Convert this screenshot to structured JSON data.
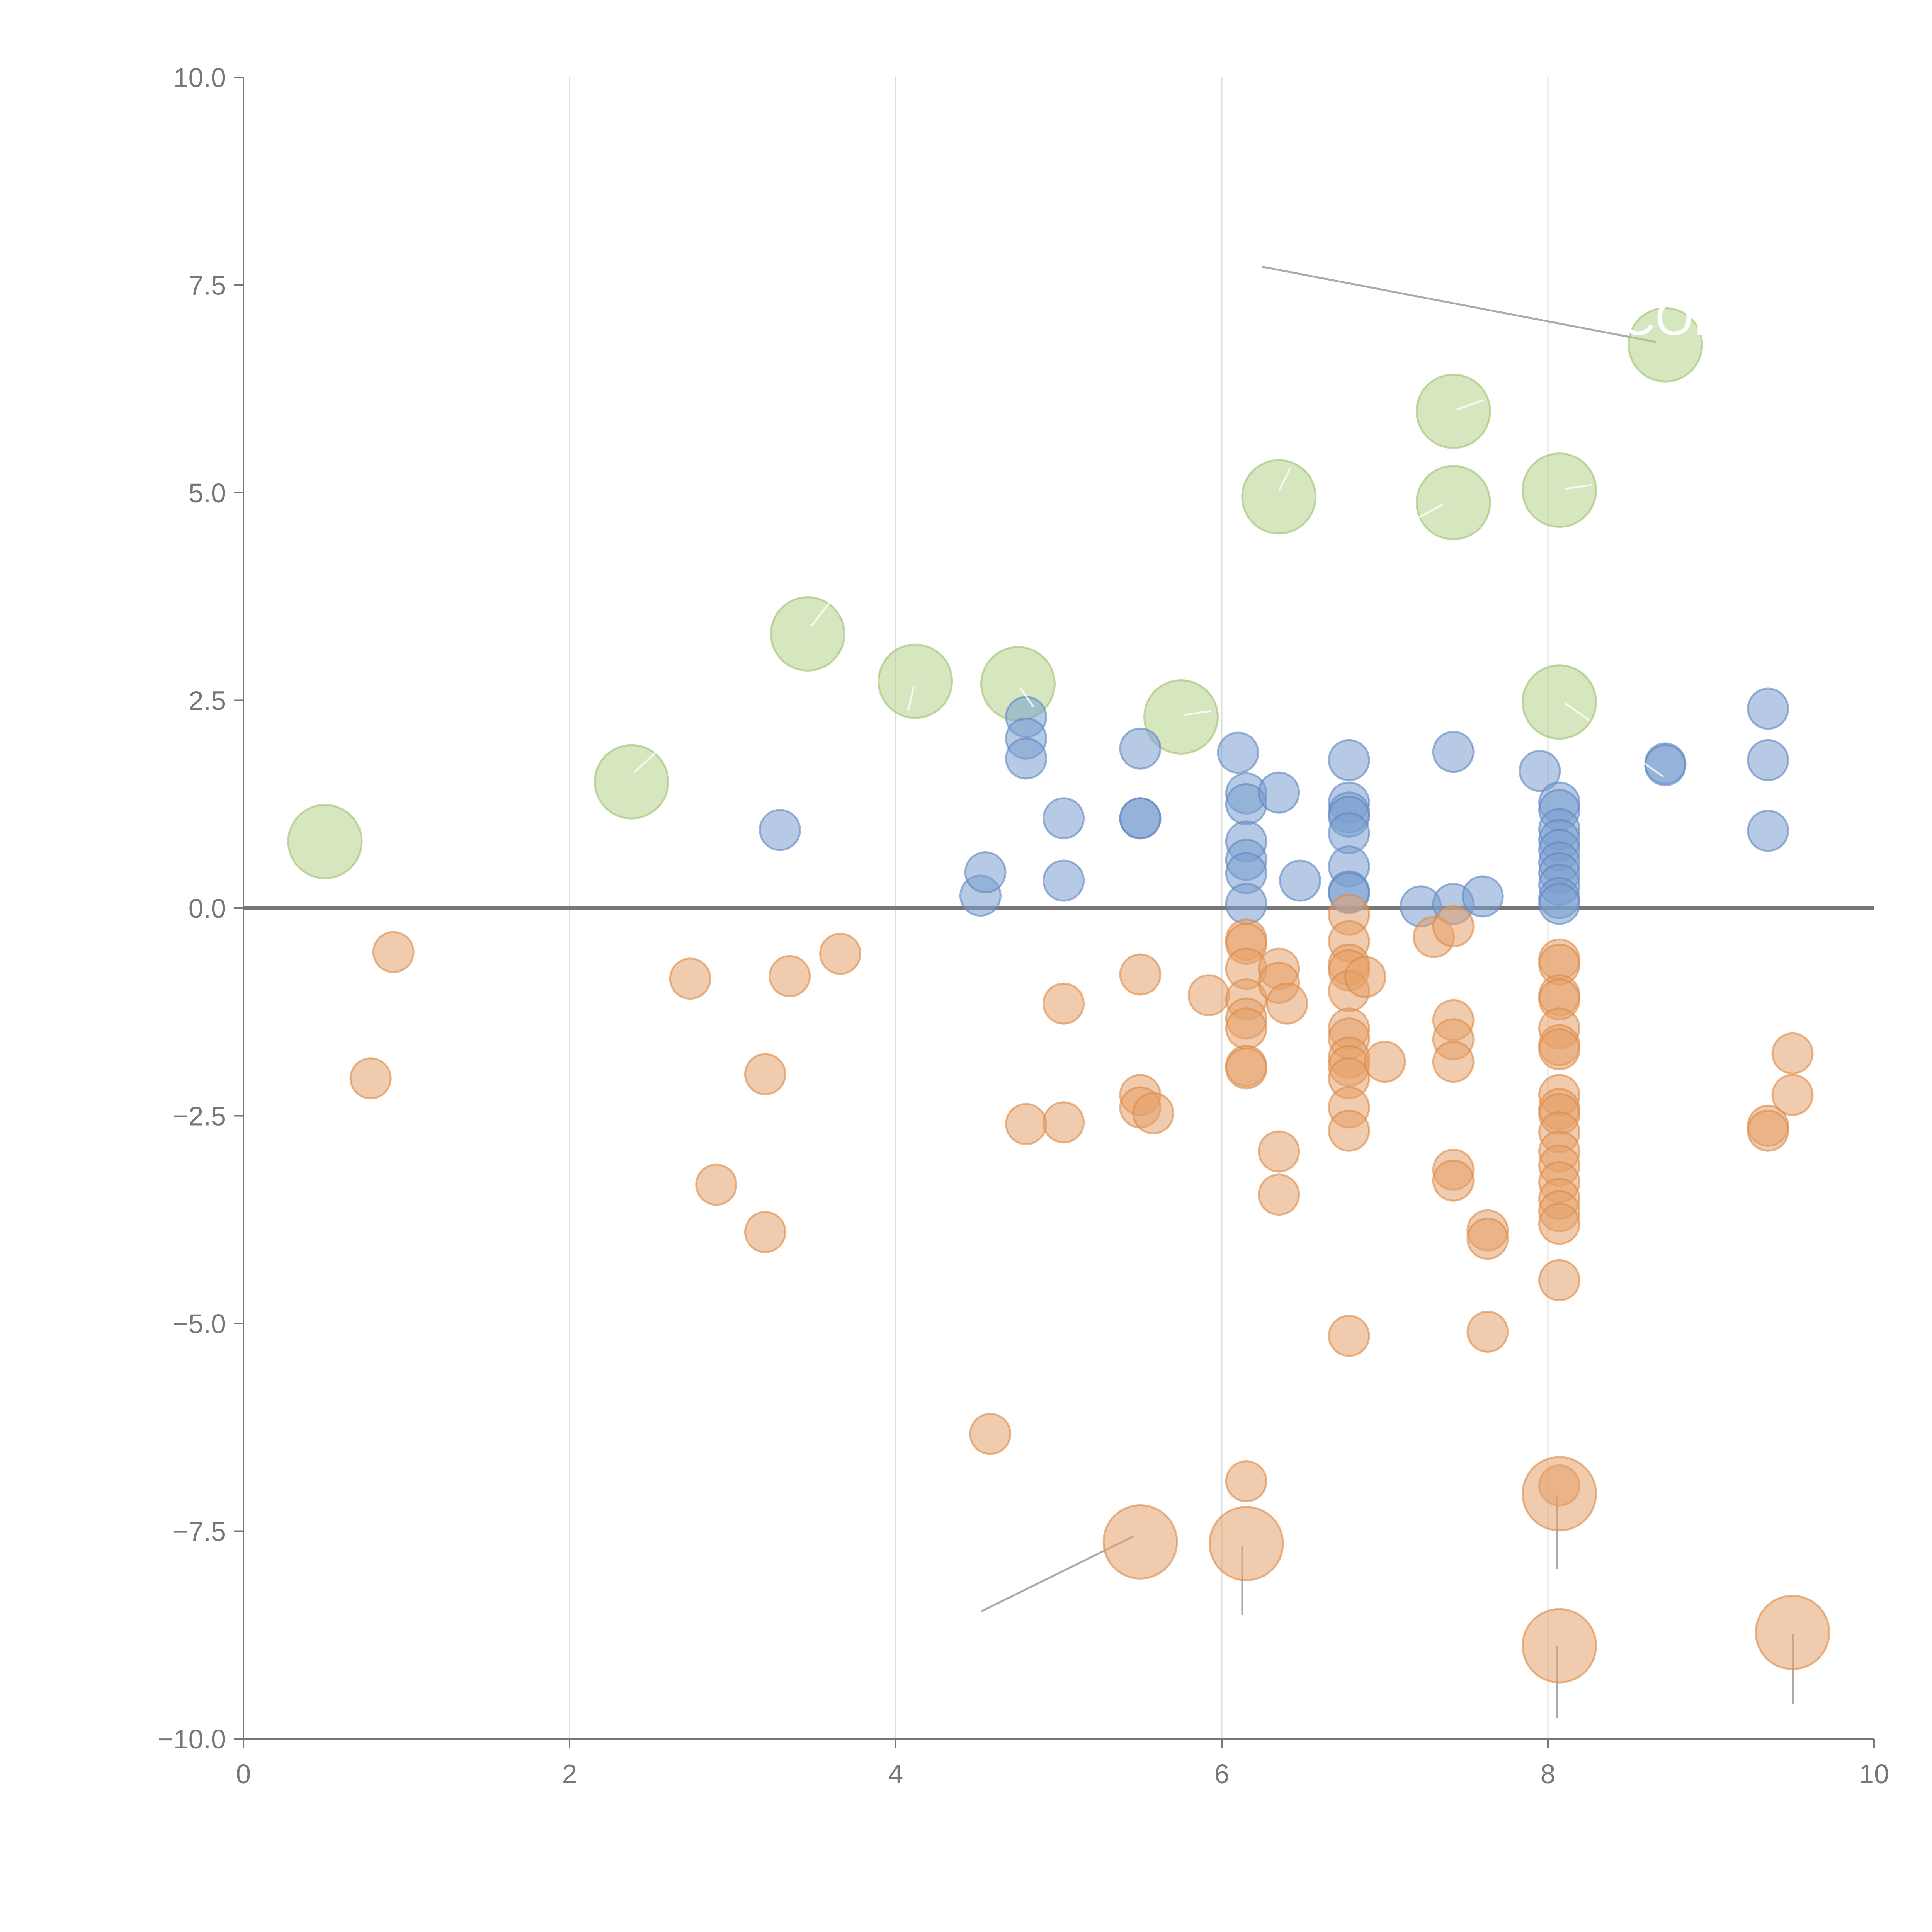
{
  "chart_data": {
    "type": "scatter",
    "title": "",
    "xlabel": "",
    "ylabel": "",
    "xlim": [
      0,
      10
    ],
    "ylim": [
      -10,
      10
    ],
    "x_ticks": [
      "0",
      "2",
      "4",
      "6",
      "8",
      "10"
    ],
    "y_ticks": [
      "10.0",
      "7.5",
      "5.0",
      "2.5",
      "0.0",
      "−2.5",
      "−5.0",
      "−7.5",
      "−10.0"
    ],
    "grid": "vertical",
    "zero_line": 0,
    "legend": "none",
    "series": [
      {
        "name": "green",
        "color": "#b5d18b",
        "stroke": "#a0c070",
        "size": "large",
        "points": [
          [
            0.5,
            0.8
          ],
          [
            2.38,
            1.52
          ],
          [
            3.46,
            3.3
          ],
          [
            4.12,
            2.73
          ],
          [
            4.75,
            2.7
          ],
          [
            5.75,
            2.3
          ],
          [
            6.35,
            4.95
          ],
          [
            7.42,
            5.98
          ],
          [
            7.42,
            4.88
          ],
          [
            8.07,
            5.03
          ],
          [
            8.07,
            2.48
          ],
          [
            8.72,
            6.78
          ]
        ]
      },
      {
        "name": "blue",
        "color": "#7a9ed0",
        "stroke": "#5f86c0",
        "size": "medium",
        "points": [
          [
            3.29,
            0.94
          ],
          [
            4.52,
            0.15
          ],
          [
            4.55,
            0.43
          ],
          [
            4.8,
            2.3
          ],
          [
            4.8,
            2.04
          ],
          [
            4.8,
            1.8
          ],
          [
            5.03,
            1.08
          ],
          [
            5.03,
            0.33
          ],
          [
            5.5,
            1.92
          ],
          [
            5.5,
            1.08
          ],
          [
            5.5,
            1.08
          ],
          [
            6.1,
            1.87
          ],
          [
            6.15,
            1.38
          ],
          [
            6.15,
            1.25
          ],
          [
            6.15,
            0.8
          ],
          [
            6.15,
            0.58
          ],
          [
            6.15,
            0.42
          ],
          [
            6.15,
            0.05
          ],
          [
            6.35,
            1.39
          ],
          [
            6.48,
            0.33
          ],
          [
            6.78,
            1.78
          ],
          [
            6.78,
            1.27
          ],
          [
            6.78,
            1.15
          ],
          [
            6.78,
            1.1
          ],
          [
            6.78,
            0.9
          ],
          [
            6.78,
            0.5
          ],
          [
            6.78,
            0.2
          ],
          [
            6.78,
            0.18
          ],
          [
            7.22,
            0.02
          ],
          [
            7.42,
            1.88
          ],
          [
            7.42,
            0.05
          ],
          [
            7.6,
            0.14
          ],
          [
            7.95,
            1.65
          ],
          [
            8.07,
            1.27
          ],
          [
            8.07,
            1.18
          ],
          [
            8.07,
            0.95
          ],
          [
            8.07,
            0.82
          ],
          [
            8.07,
            0.7
          ],
          [
            8.07,
            0.55
          ],
          [
            8.07,
            0.42
          ],
          [
            8.07,
            0.28
          ],
          [
            8.07,
            0.12
          ],
          [
            8.07,
            0.05
          ],
          [
            8.72,
            1.74
          ],
          [
            8.72,
            1.72
          ],
          [
            9.35,
            2.4
          ],
          [
            9.35,
            1.78
          ],
          [
            9.35,
            0.93
          ]
        ]
      },
      {
        "name": "orange",
        "color": "#e6a06a",
        "stroke": "#db8a48",
        "size": "medium",
        "points": [
          [
            0.78,
            -2.05
          ],
          [
            0.92,
            -0.53
          ],
          [
            2.74,
            -0.85
          ],
          [
            2.9,
            -3.33
          ],
          [
            3.2,
            -2.0
          ],
          [
            3.2,
            -3.9
          ],
          [
            3.35,
            -0.82
          ],
          [
            3.66,
            -0.55
          ],
          [
            4.58,
            -6.33
          ],
          [
            4.8,
            -2.6
          ],
          [
            5.03,
            -1.15
          ],
          [
            5.03,
            -2.58
          ],
          [
            5.5,
            -0.8
          ],
          [
            5.5,
            -2.25
          ],
          [
            5.5,
            -2.4
          ],
          [
            5.58,
            -2.47
          ],
          [
            5.92,
            -1.05
          ],
          [
            6.15,
            -0.38
          ],
          [
            6.15,
            -0.43
          ],
          [
            6.15,
            -0.73
          ],
          [
            6.15,
            -1.1
          ],
          [
            6.15,
            -1.33
          ],
          [
            6.15,
            -1.45
          ],
          [
            6.15,
            -1.9
          ],
          [
            6.15,
            -1.93
          ],
          [
            6.15,
            -6.9
          ],
          [
            6.35,
            -0.73
          ],
          [
            6.35,
            -0.9
          ],
          [
            6.4,
            -1.15
          ],
          [
            6.35,
            -2.93
          ],
          [
            6.35,
            -3.45
          ],
          [
            6.78,
            -0.08
          ],
          [
            6.78,
            -0.4
          ],
          [
            6.78,
            -0.68
          ],
          [
            6.78,
            -0.75
          ],
          [
            6.78,
            -1.0
          ],
          [
            6.78,
            -1.45
          ],
          [
            6.78,
            -1.57
          ],
          [
            6.78,
            -1.8
          ],
          [
            6.78,
            -1.9
          ],
          [
            6.78,
            -2.05
          ],
          [
            6.78,
            -2.4
          ],
          [
            6.78,
            -2.68
          ],
          [
            6.78,
            -5.15
          ],
          [
            6.88,
            -0.83
          ],
          [
            7.0,
            -1.85
          ],
          [
            7.3,
            -0.35
          ],
          [
            7.42,
            -0.22
          ],
          [
            7.42,
            -1.35
          ],
          [
            7.42,
            -1.58
          ],
          [
            7.42,
            -1.85
          ],
          [
            7.42,
            -3.15
          ],
          [
            7.42,
            -3.28
          ],
          [
            7.63,
            -3.88
          ],
          [
            7.63,
            -3.98
          ],
          [
            7.63,
            -5.1
          ],
          [
            8.07,
            -0.62
          ],
          [
            8.07,
            -0.68
          ],
          [
            8.07,
            -1.05
          ],
          [
            8.07,
            -1.1
          ],
          [
            8.07,
            -1.45
          ],
          [
            8.07,
            -1.65
          ],
          [
            8.07,
            -1.7
          ],
          [
            8.07,
            -2.25
          ],
          [
            8.07,
            -2.42
          ],
          [
            8.07,
            -2.48
          ],
          [
            8.07,
            -2.7
          ],
          [
            8.07,
            -2.93
          ],
          [
            8.07,
            -3.1
          ],
          [
            8.07,
            -3.3
          ],
          [
            8.07,
            -3.5
          ],
          [
            8.07,
            -3.65
          ],
          [
            8.07,
            -3.8
          ],
          [
            8.07,
            -4.48
          ],
          [
            8.07,
            -6.95
          ],
          [
            9.35,
            -2.62
          ],
          [
            9.35,
            -2.68
          ],
          [
            9.5,
            -1.75
          ],
          [
            9.5,
            -2.25
          ]
        ]
      },
      {
        "name": "orange-large",
        "color": "#e6a06a",
        "stroke": "#db8a48",
        "size": "large",
        "points": [
          [
            5.5,
            -7.63
          ],
          [
            6.15,
            -7.65
          ],
          [
            8.07,
            -7.05
          ],
          [
            8.07,
            -8.88
          ],
          [
            9.5,
            -8.72
          ]
        ]
      }
    ],
    "annotations": [
      {
        "text": "COL",
        "x": 8.75,
        "y": 6.9
      }
    ]
  }
}
